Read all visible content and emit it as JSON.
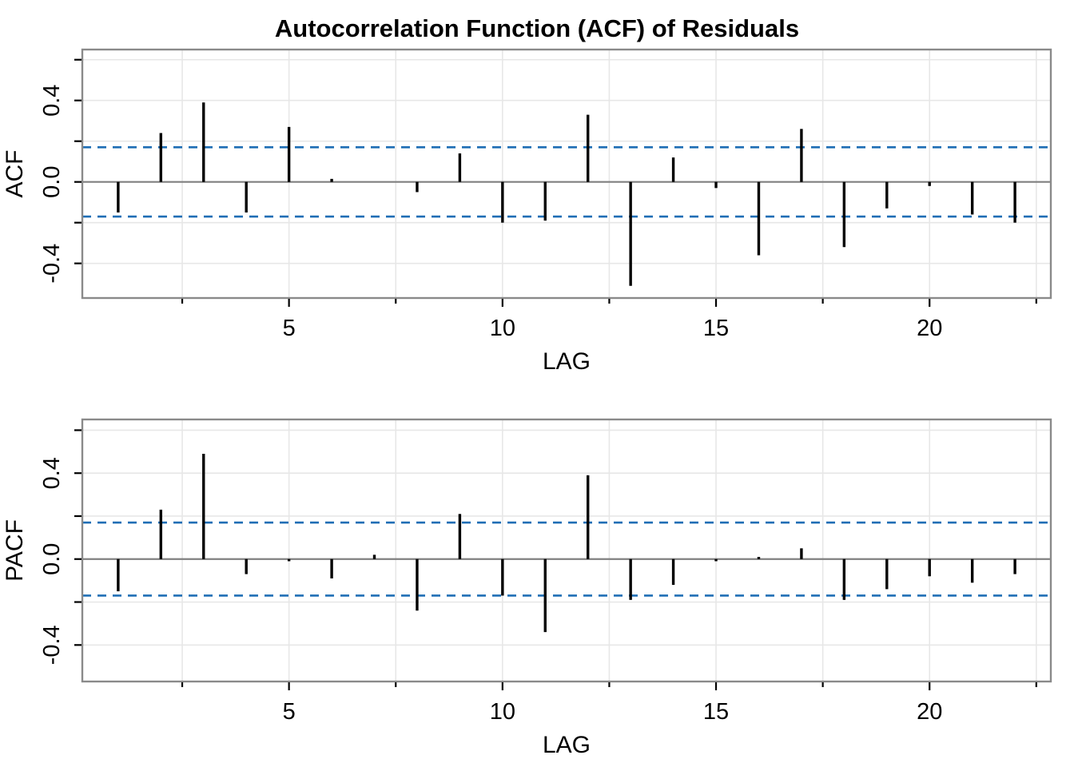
{
  "title": "Autocorrelation Function (ACF) of Residuals",
  "colors": {
    "background": "#ffffff",
    "bar": "#000000",
    "conf_band": "#1f6eb5",
    "zero_line": "#808080",
    "panel_border": "#8a8a8a",
    "gridline": "#e7e7e7",
    "tick": "#000000",
    "text": "#000000"
  },
  "chart_data": [
    {
      "type": "bar",
      "panel": "ACF",
      "title": "Autocorrelation Function (ACF) of Residuals",
      "xlabel": "LAG",
      "ylabel": "ACF",
      "x": [
        1,
        2,
        3,
        4,
        5,
        6,
        7,
        8,
        9,
        10,
        11,
        12,
        13,
        14,
        15,
        16,
        17,
        18,
        19,
        20,
        21,
        22
      ],
      "values": [
        -0.15,
        0.24,
        0.39,
        -0.15,
        0.27,
        0.015,
        0.0,
        -0.05,
        0.14,
        -0.2,
        -0.19,
        0.33,
        -0.51,
        0.12,
        -0.03,
        -0.36,
        0.26,
        -0.32,
        -0.13,
        -0.02,
        -0.16,
        -0.2
      ],
      "conf_bands": [
        0.17,
        -0.17
      ],
      "conf_band_style": "dashed",
      "xlim": [
        0.16,
        22.84
      ],
      "ylim": [
        -0.57,
        0.65
      ],
      "grid": true,
      "legend": false,
      "xticks": {
        "major": [
          5,
          10,
          15,
          20
        ],
        "major_labels": [
          "5",
          "10",
          "15",
          "20"
        ],
        "minor": [
          2.5,
          7.5,
          12.5,
          17.5,
          22.5
        ]
      },
      "yticks": {
        "major": [
          -0.4,
          0.0,
          0.4
        ],
        "major_labels": [
          "-0.4",
          "0.0",
          "0.4"
        ],
        "minor": [
          -0.2,
          0.2,
          0.6
        ]
      }
    },
    {
      "type": "bar",
      "panel": "PACF",
      "title": "",
      "xlabel": "LAG",
      "ylabel": "PACF",
      "x": [
        1,
        2,
        3,
        4,
        5,
        6,
        7,
        8,
        9,
        10,
        11,
        12,
        13,
        14,
        15,
        16,
        17,
        18,
        19,
        20,
        21,
        22
      ],
      "values": [
        -0.15,
        0.23,
        0.49,
        -0.07,
        -0.01,
        -0.09,
        0.02,
        -0.24,
        0.21,
        -0.17,
        -0.34,
        0.39,
        -0.19,
        -0.12,
        -0.01,
        0.01,
        0.05,
        -0.19,
        -0.14,
        -0.08,
        -0.11,
        -0.07
      ],
      "conf_bands": [
        0.17,
        -0.17
      ],
      "conf_band_style": "dashed",
      "xlim": [
        0.16,
        22.84
      ],
      "ylim": [
        -0.57,
        0.65
      ],
      "grid": true,
      "legend": false,
      "xticks": {
        "major": [
          5,
          10,
          15,
          20
        ],
        "major_labels": [
          "5",
          "10",
          "15",
          "20"
        ],
        "minor": [
          2.5,
          7.5,
          12.5,
          17.5,
          22.5
        ]
      },
      "yticks": {
        "major": [
          -0.4,
          0.0,
          0.4
        ],
        "major_labels": [
          "-0.4",
          "0.0",
          "0.4"
        ],
        "minor": [
          -0.2,
          0.2,
          0.6
        ]
      }
    }
  ]
}
